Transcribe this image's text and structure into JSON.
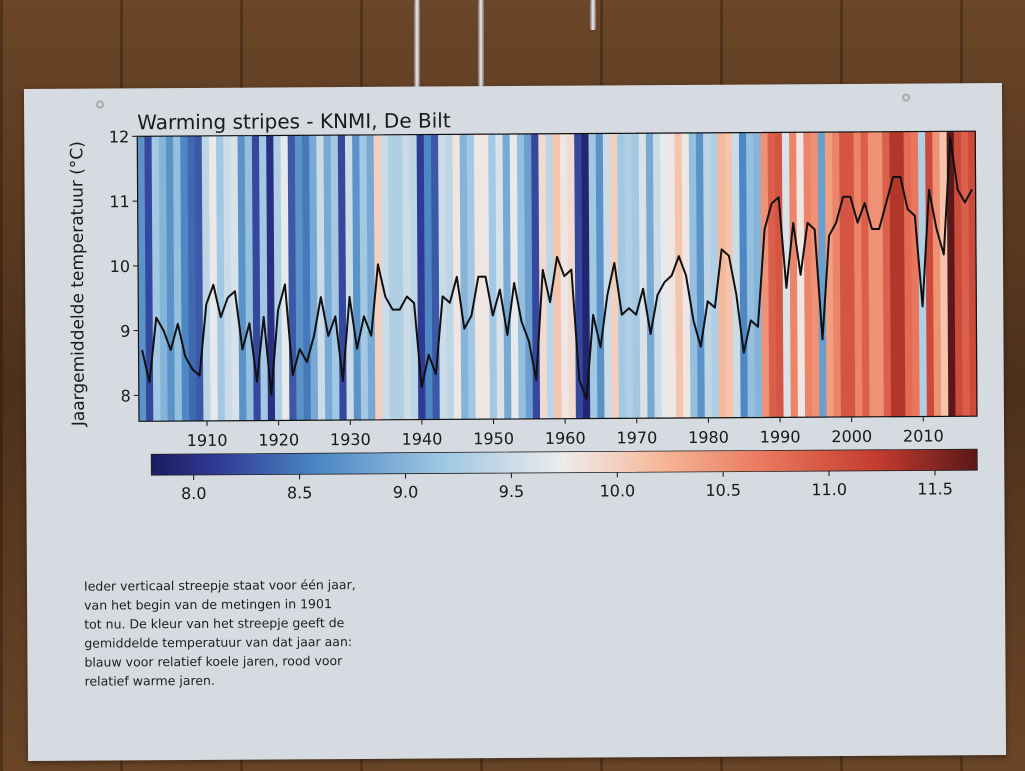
{
  "chart_data": {
    "type": "line",
    "title": "Warming stripes - KNMI, De Bilt",
    "xlabel": "",
    "ylabel": "Jaargemiddelde temperatuur (°C)",
    "xlim": [
      1901,
      2017
    ],
    "ylim": [
      7.6,
      12.0
    ],
    "y_ticks": [
      8,
      9,
      10,
      11,
      12
    ],
    "x_ticks": [
      1910,
      1920,
      1930,
      1940,
      1950,
      1960,
      1970,
      1980,
      1990,
      2000,
      2010
    ],
    "grid": false,
    "background": "stripes",
    "line_color": "#111111",
    "x": [
      1901,
      1902,
      1903,
      1904,
      1905,
      1906,
      1907,
      1908,
      1909,
      1910,
      1911,
      1912,
      1913,
      1914,
      1915,
      1916,
      1917,
      1918,
      1919,
      1920,
      1921,
      1922,
      1923,
      1924,
      1925,
      1926,
      1927,
      1928,
      1929,
      1930,
      1931,
      1932,
      1933,
      1934,
      1935,
      1936,
      1937,
      1938,
      1939,
      1940,
      1941,
      1942,
      1943,
      1944,
      1945,
      1946,
      1947,
      1948,
      1949,
      1950,
      1951,
      1952,
      1953,
      1954,
      1955,
      1956,
      1957,
      1958,
      1959,
      1960,
      1961,
      1962,
      1963,
      1964,
      1965,
      1966,
      1967,
      1968,
      1969,
      1970,
      1971,
      1972,
      1973,
      1974,
      1975,
      1976,
      1977,
      1978,
      1979,
      1980,
      1981,
      1982,
      1983,
      1984,
      1985,
      1986,
      1987,
      1988,
      1989,
      1990,
      1991,
      1992,
      1993,
      1994,
      1995,
      1996,
      1997,
      1998,
      1999,
      2000,
      2001,
      2002,
      2003,
      2004,
      2005,
      2006,
      2007,
      2008,
      2009,
      2010,
      2011,
      2012,
      2013,
      2014,
      2015,
      2016,
      2017
    ],
    "values": [
      8.7,
      8.2,
      9.2,
      9.0,
      8.7,
      9.1,
      8.6,
      8.4,
      8.3,
      9.4,
      9.7,
      9.2,
      9.5,
      9.6,
      8.7,
      9.1,
      8.2,
      9.2,
      8.0,
      9.3,
      9.7,
      8.3,
      8.7,
      8.5,
      8.9,
      9.5,
      8.9,
      9.2,
      8.2,
      9.5,
      8.7,
      9.2,
      8.9,
      10.0,
      9.5,
      9.3,
      9.3,
      9.5,
      9.4,
      8.1,
      8.6,
      8.3,
      9.5,
      9.4,
      9.8,
      9.0,
      9.2,
      9.8,
      9.8,
      9.2,
      9.6,
      8.9,
      9.7,
      9.1,
      8.8,
      8.2,
      9.9,
      9.4,
      10.1,
      9.8,
      9.9,
      8.2,
      7.9,
      9.2,
      8.7,
      9.5,
      10.0,
      9.2,
      9.3,
      9.2,
      9.6,
      8.9,
      9.5,
      9.7,
      9.8,
      10.1,
      9.8,
      9.1,
      8.7,
      9.4,
      9.3,
      10.2,
      10.1,
      9.5,
      8.6,
      9.1,
      9.0,
      10.5,
      10.9,
      11.0,
      9.6,
      10.6,
      9.8,
      10.6,
      10.5,
      8.8,
      10.4,
      10.6,
      11.0,
      11.0,
      10.6,
      10.9,
      10.5,
      10.5,
      10.9,
      11.3,
      11.3,
      10.8,
      10.7,
      9.3,
      11.1,
      10.5,
      10.1,
      11.9,
      11.1,
      10.9,
      11.1
    ]
  },
  "colorbar": {
    "ticks": [
      "8.0",
      "8.5",
      "9.0",
      "9.5",
      "10.0",
      "10.5",
      "11.0",
      "11.5"
    ],
    "range": [
      7.8,
      11.7
    ]
  },
  "caption": [
    "Ieder verticaal streepje staat voor één jaar,",
    "van het begin van de metingen in 1901",
    "tot nu. De kleur van het streepje geeft de",
    "gemiddelde temperatuur van dat jaar aan:",
    "blauw voor relatief koele jaren, rood voor",
    "relatief warme jaren."
  ]
}
